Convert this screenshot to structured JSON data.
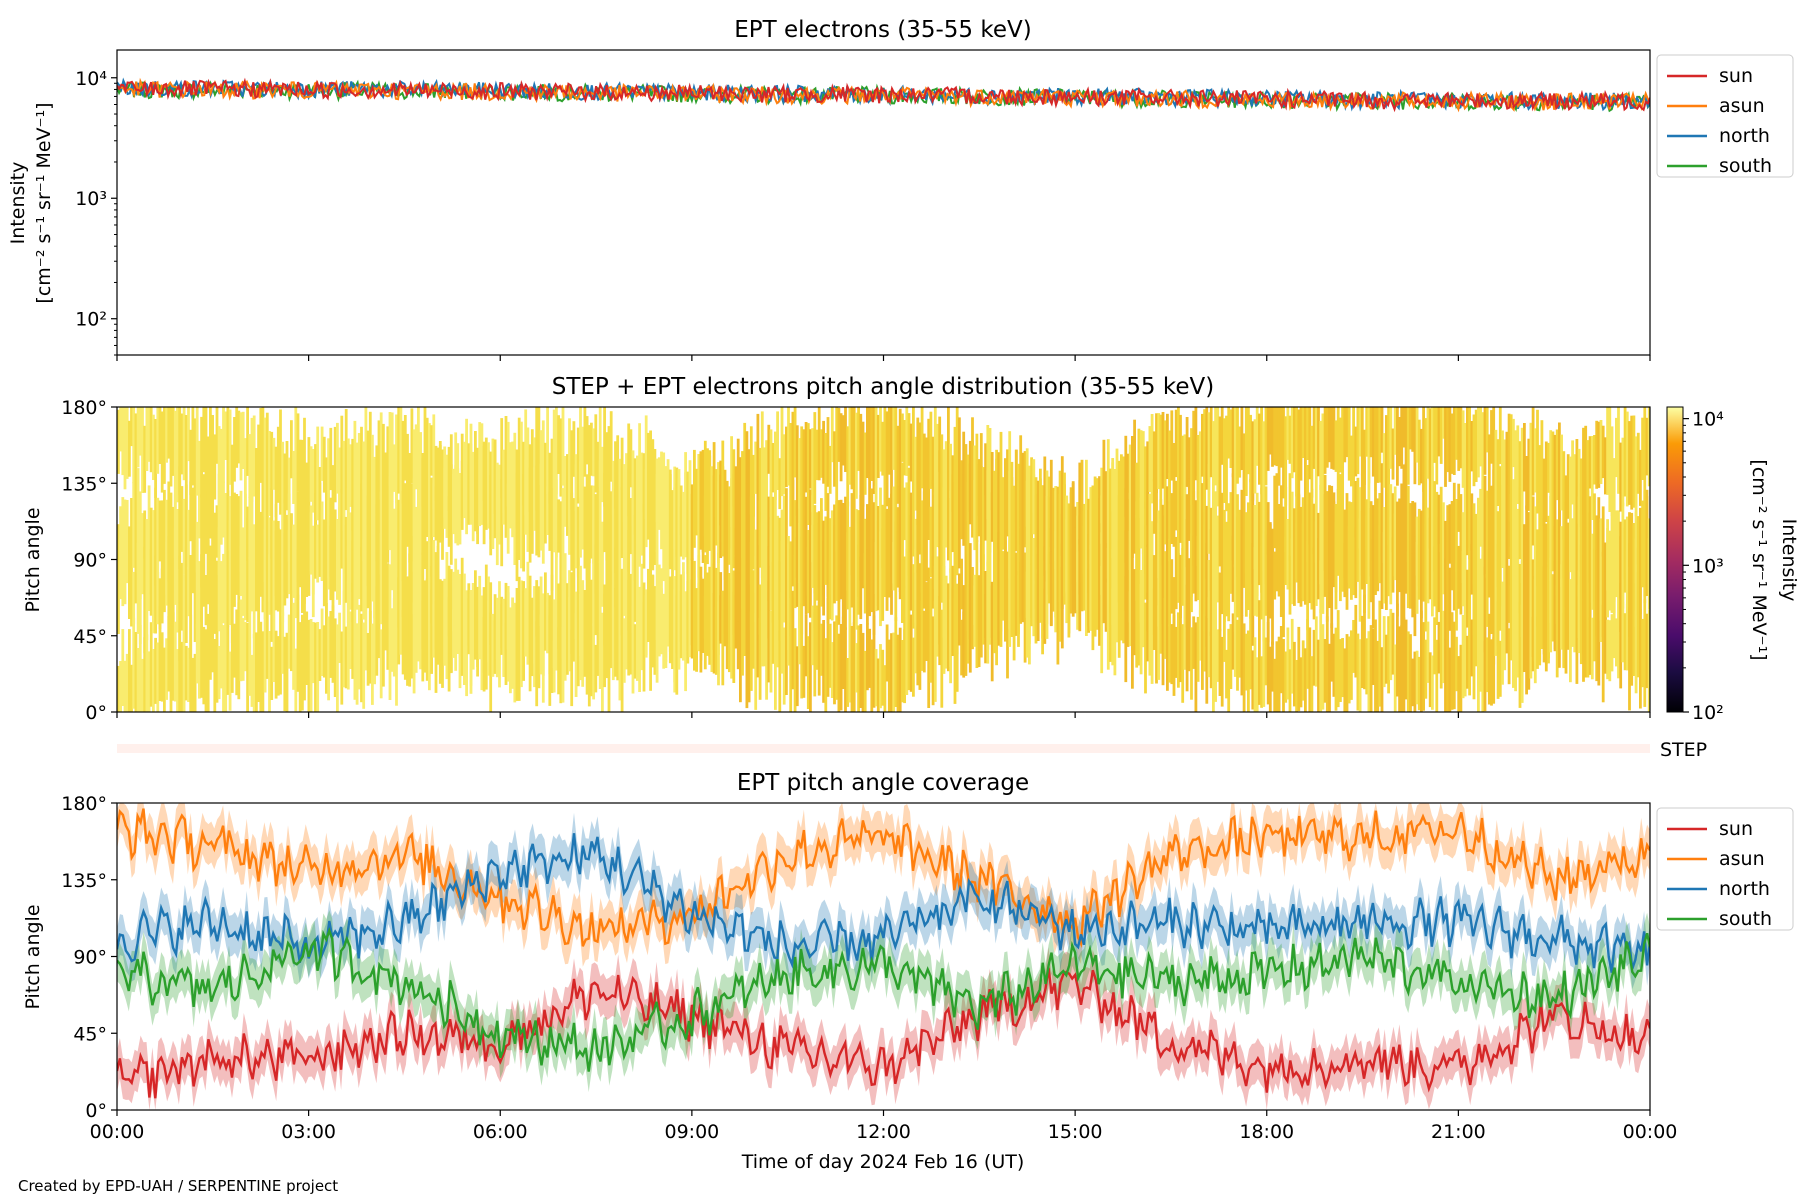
{
  "credit": "Created by EPD-UAH / SERPENTINE project",
  "xlabel": "Time of day 2024 Feb 16 (UT)",
  "xticks": [
    "00:00",
    "03:00",
    "06:00",
    "09:00",
    "12:00",
    "15:00",
    "18:00",
    "21:00",
    "00:00"
  ],
  "colors": {
    "sun": "#d62728",
    "asun": "#ff7f0e",
    "north": "#1f77b4",
    "south": "#2ca02c"
  },
  "step_label": "STEP",
  "chart_data": [
    {
      "type": "line",
      "title": "EPT electrons (35-55 keV)",
      "ylabel": [
        "Intensity",
        "[cm⁻² s⁻¹ sr⁻¹ MeV⁻¹]"
      ],
      "yscale": "log",
      "ylim": [
        50,
        17000
      ],
      "yticks": [
        {
          "value": 100,
          "label": "10²"
        },
        {
          "value": 1000,
          "label": "10³"
        },
        {
          "value": 10000,
          "label": "10⁴"
        }
      ],
      "x_hours": [
        0,
        2,
        4,
        6,
        8,
        10,
        12,
        14,
        16,
        18,
        20,
        22,
        24
      ],
      "legend": "upper-right-outside",
      "series": [
        {
          "name": "sun",
          "values": [
            8200,
            8100,
            8000,
            7800,
            7600,
            7400,
            7300,
            7100,
            6900,
            6700,
            6500,
            6500,
            6400
          ]
        },
        {
          "name": "asun",
          "values": [
            8100,
            8000,
            7900,
            7700,
            7500,
            7300,
            7200,
            7000,
            6800,
            6600,
            6500,
            6400,
            6400
          ]
        },
        {
          "name": "north",
          "values": [
            8300,
            8200,
            8100,
            7900,
            7700,
            7500,
            7300,
            7100,
            7000,
            6800,
            6600,
            6500,
            6500
          ]
        },
        {
          "name": "south",
          "values": [
            8000,
            8000,
            7900,
            7700,
            7500,
            7300,
            7200,
            7000,
            6800,
            6600,
            6500,
            6400,
            6300
          ]
        }
      ]
    },
    {
      "type": "heatmap",
      "title": "STEP + EPT electrons pitch angle distribution (35-55 keV)",
      "ylabel": "Pitch angle",
      "ylim": [
        0,
        180
      ],
      "yticks": [
        {
          "value": 0,
          "label": "0°"
        },
        {
          "value": 45,
          "label": "45°"
        },
        {
          "value": 90,
          "label": "90°"
        },
        {
          "value": 135,
          "label": "135°"
        },
        {
          "value": 180,
          "label": "180°"
        }
      ],
      "colorbar": {
        "label": "Intensity",
        "units": "[cm⁻² s⁻¹ sr⁻¹ MeV⁻¹]",
        "scale": "log",
        "range": [
          100,
          12000
        ],
        "ticks": [
          {
            "value": 100,
            "label": "10²"
          },
          {
            "value": 1000,
            "label": "10³"
          },
          {
            "value": 10000,
            "label": "10⁴"
          }
        ],
        "colormap": "inferno"
      }
    },
    {
      "type": "line",
      "title": "EPT pitch angle coverage",
      "ylabel": "Pitch angle",
      "ylim": [
        0,
        180
      ],
      "yticks": [
        {
          "value": 0,
          "label": "0°"
        },
        {
          "value": 45,
          "label": "45°"
        },
        {
          "value": 90,
          "label": "90°"
        },
        {
          "value": 135,
          "label": "135°"
        },
        {
          "value": 180,
          "label": "180°"
        }
      ],
      "x_hours": [
        0,
        1.5,
        3,
        4.5,
        6,
        7.5,
        9,
        10.5,
        12,
        13.5,
        15,
        16.5,
        18,
        19.5,
        21,
        22.5,
        24
      ],
      "band_halfwidth_deg": 12,
      "legend": "upper-right-outside",
      "series": [
        {
          "name": "sun",
          "values": [
            15,
            30,
            30,
            45,
            40,
            70,
            55,
            35,
            25,
            55,
            75,
            40,
            25,
            30,
            25,
            55,
            40
          ]
        },
        {
          "name": "asun",
          "values": [
            165,
            155,
            140,
            150,
            125,
            105,
            115,
            150,
            160,
            135,
            110,
            150,
            160,
            160,
            165,
            135,
            150
          ]
        },
        {
          "name": "north",
          "values": [
            100,
            110,
            95,
            110,
            140,
            150,
            115,
            95,
            100,
            125,
            105,
            110,
            105,
            110,
            110,
            100,
            90
          ]
        },
        {
          "name": "south",
          "values": [
            80,
            70,
            95,
            75,
            45,
            35,
            55,
            80,
            85,
            60,
            85,
            75,
            80,
            90,
            75,
            65,
            90
          ]
        }
      ]
    }
  ]
}
